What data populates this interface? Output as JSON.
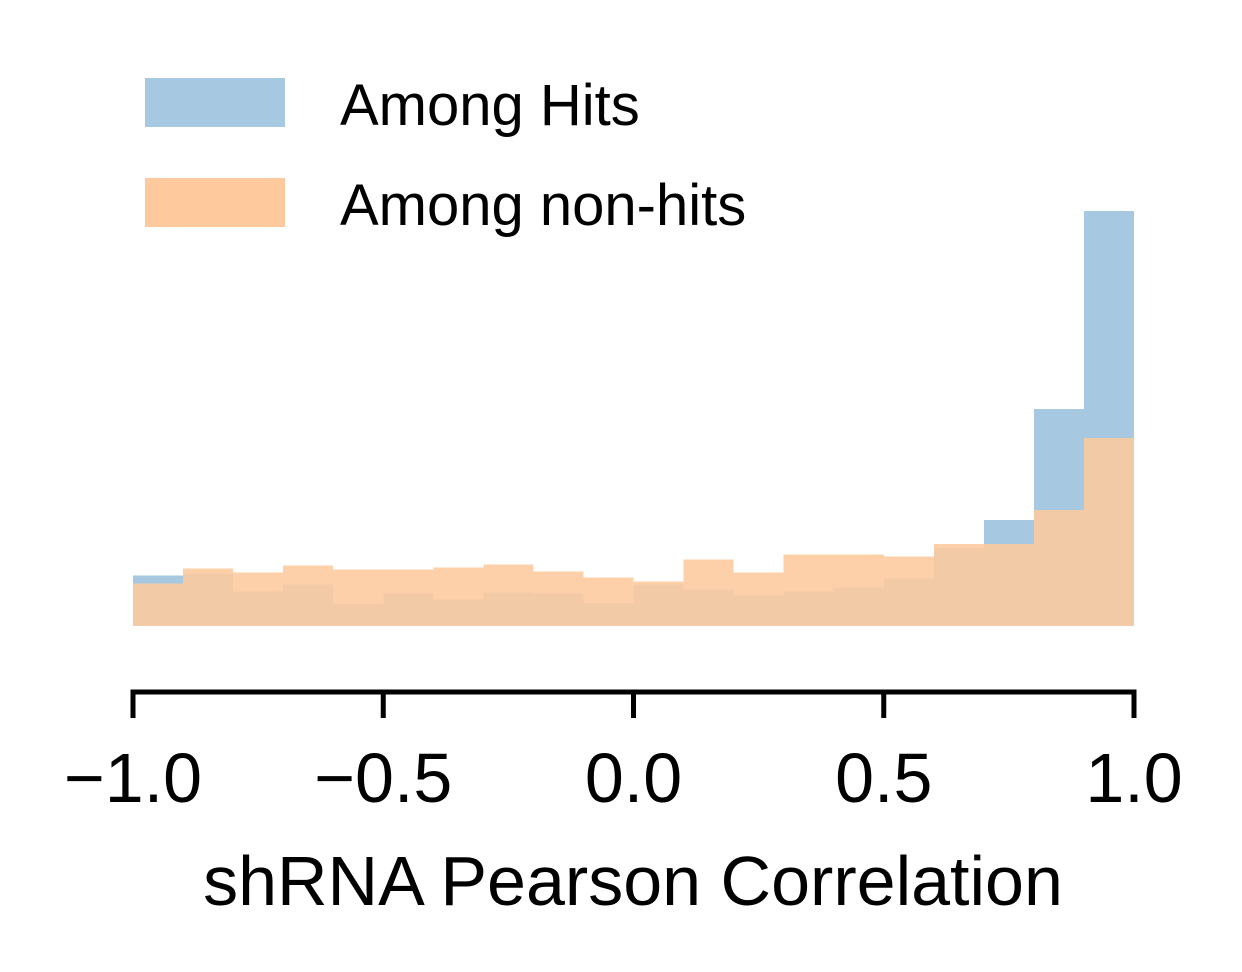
{
  "chart_data": {
    "type": "bar",
    "subtype": "overlapping-histogram",
    "title": "",
    "xlabel": "shRNA Pearson Correlation",
    "ylabel": "",
    "xlim": [
      -1.0,
      1.0
    ],
    "xticks": [
      -1.0,
      -0.5,
      0.0,
      0.5,
      1.0
    ],
    "xtick_labels": [
      "−1.0",
      "−0.5",
      "0.0",
      "0.5",
      "1.0"
    ],
    "y_axis_visible": false,
    "grid": false,
    "legend_position": "top-left",
    "bin_edges": [
      -1.0,
      -0.9,
      -0.8,
      -0.7,
      -0.6,
      -0.5,
      -0.4,
      -0.3,
      -0.2,
      -0.1,
      0.0,
      0.1,
      0.2,
      0.3,
      0.4,
      0.5,
      0.6,
      0.7,
      0.8,
      0.9,
      1.0
    ],
    "ylim": [
      0,
      4.2
    ],
    "series": [
      {
        "name": "Among Hits",
        "color": "#a6c8e0",
        "values": [
          0.51,
          0.53,
          0.35,
          0.42,
          0.22,
          0.33,
          0.27,
          0.34,
          0.33,
          0.23,
          0.42,
          0.37,
          0.31,
          0.35,
          0.39,
          0.48,
          0.79,
          1.07,
          2.19,
          4.19
        ]
      },
      {
        "name": "Among non-hits",
        "color": "#fec99d",
        "values": [
          0.43,
          0.58,
          0.54,
          0.61,
          0.57,
          0.57,
          0.59,
          0.62,
          0.55,
          0.49,
          0.45,
          0.67,
          0.54,
          0.72,
          0.72,
          0.7,
          0.83,
          0.83,
          1.17,
          1.9
        ]
      }
    ]
  }
}
